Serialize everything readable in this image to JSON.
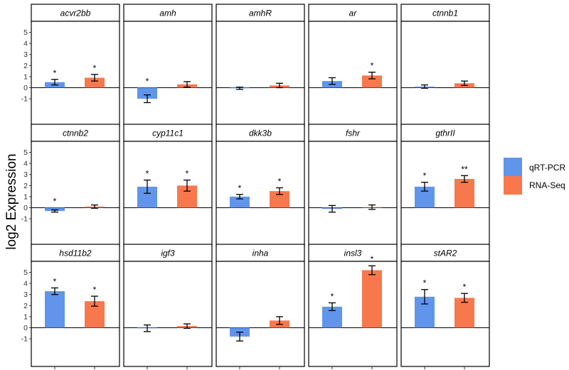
{
  "chart_data": {
    "type": "bar",
    "ylabel": "log2 Expression",
    "yticks": [
      -1,
      0,
      1,
      2,
      3,
      4,
      5
    ],
    "ylim": [
      -3.5,
      6
    ],
    "legend": {
      "position": "right",
      "entries": [
        {
          "name": "qRT-PCR",
          "color": "#6195EB"
        },
        {
          "name": "RNA-Seq",
          "color": "#F8784E"
        }
      ]
    },
    "panels": [
      {
        "gene": "acvr2bb",
        "qrt": {
          "value": 0.5,
          "err": 0.25,
          "sig": "*"
        },
        "rna": {
          "value": 0.9,
          "err": 0.3,
          "sig": "*"
        }
      },
      {
        "gene": "amh",
        "qrt": {
          "value": -1.0,
          "err": 0.35,
          "sig": "*"
        },
        "rna": {
          "value": 0.3,
          "err": 0.25,
          "sig": ""
        }
      },
      {
        "gene": "amhR",
        "qrt": {
          "value": -0.05,
          "err": 0.1,
          "sig": ""
        },
        "rna": {
          "value": 0.2,
          "err": 0.2,
          "sig": ""
        }
      },
      {
        "gene": "ar",
        "qrt": {
          "value": 0.6,
          "err": 0.3,
          "sig": ""
        },
        "rna": {
          "value": 1.1,
          "err": 0.3,
          "sig": "*"
        }
      },
      {
        "gene": "ctnnb1",
        "qrt": {
          "value": 0.1,
          "err": 0.15,
          "sig": ""
        },
        "rna": {
          "value": 0.4,
          "err": 0.2,
          "sig": ""
        }
      },
      {
        "gene": "ctnnb2",
        "qrt": {
          "value": -0.3,
          "err": 0.1,
          "sig": "*"
        },
        "rna": {
          "value": 0.1,
          "err": 0.15,
          "sig": ""
        }
      },
      {
        "gene": "cyp11c1",
        "qrt": {
          "value": 1.9,
          "err": 0.6,
          "sig": "*"
        },
        "rna": {
          "value": 2.0,
          "err": 0.5,
          "sig": "*"
        }
      },
      {
        "gene": "dkk3b",
        "qrt": {
          "value": 1.0,
          "err": 0.2,
          "sig": "*"
        },
        "rna": {
          "value": 1.5,
          "err": 0.3,
          "sig": "*"
        }
      },
      {
        "gene": "fshr",
        "qrt": {
          "value": -0.1,
          "err": 0.3,
          "sig": ""
        },
        "rna": {
          "value": 0.05,
          "err": 0.2,
          "sig": ""
        }
      },
      {
        "gene": "gthrII",
        "qrt": {
          "value": 1.9,
          "err": 0.4,
          "sig": "*"
        },
        "rna": {
          "value": 2.6,
          "err": 0.3,
          "sig": "**"
        }
      },
      {
        "gene": "hsd11b2",
        "qrt": {
          "value": 3.3,
          "err": 0.3,
          "sig": "*"
        },
        "rna": {
          "value": 2.4,
          "err": 0.45,
          "sig": "*"
        }
      },
      {
        "gene": "igf3",
        "qrt": {
          "value": -0.05,
          "err": 0.3,
          "sig": ""
        },
        "rna": {
          "value": 0.15,
          "err": 0.2,
          "sig": ""
        }
      },
      {
        "gene": "inha",
        "qrt": {
          "value": -0.8,
          "err": 0.4,
          "sig": ""
        },
        "rna": {
          "value": 0.65,
          "err": 0.35,
          "sig": ""
        }
      },
      {
        "gene": "insl3",
        "qrt": {
          "value": 1.9,
          "err": 0.35,
          "sig": "*"
        },
        "rna": {
          "value": 5.2,
          "err": 0.4,
          "sig": "*"
        }
      },
      {
        "gene": "stAR2",
        "qrt": {
          "value": 2.8,
          "err": 0.65,
          "sig": "*"
        },
        "rna": {
          "value": 2.7,
          "err": 0.4,
          "sig": "*"
        }
      }
    ]
  }
}
